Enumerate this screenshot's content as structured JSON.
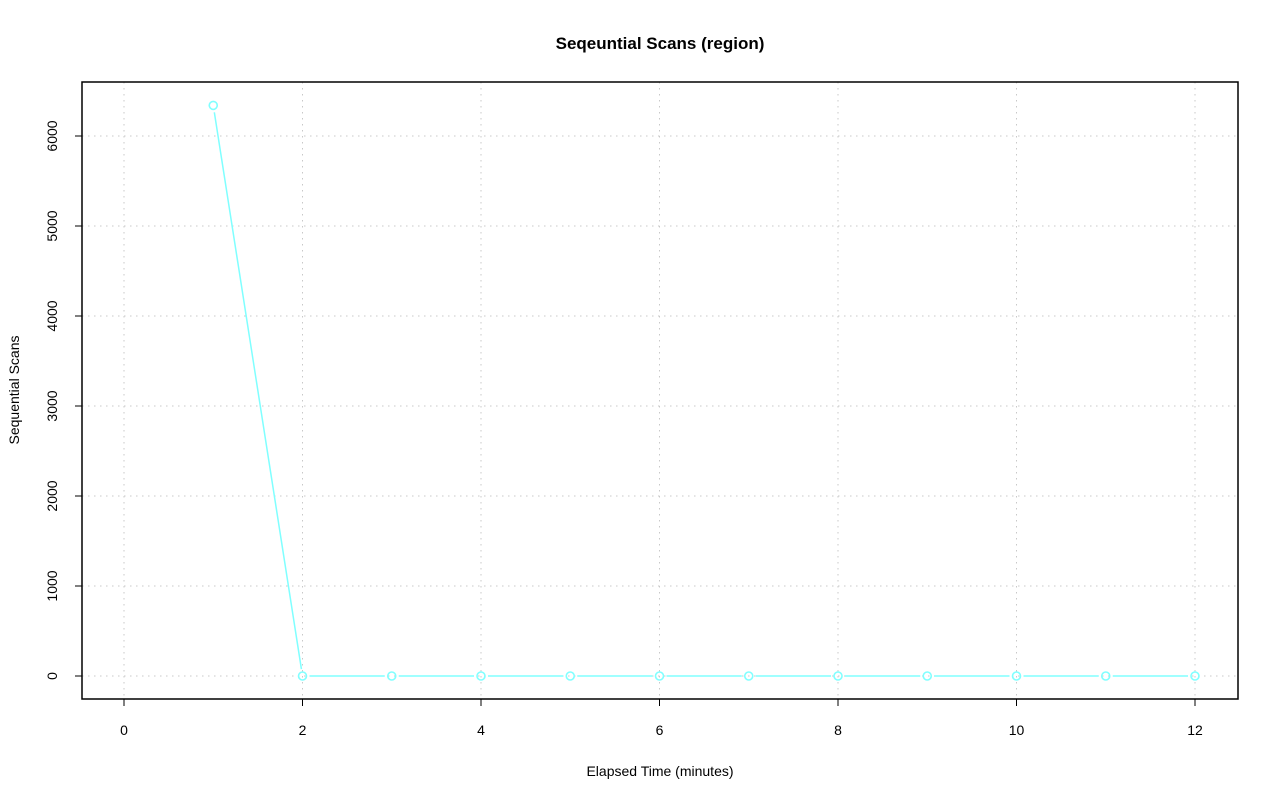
{
  "chart_data": {
    "type": "line",
    "title": "Seqeuntial Scans (region)",
    "xlabel": "Elapsed Time (minutes)",
    "ylabel": "Sequential Scans",
    "x": [
      1,
      2,
      3,
      4,
      5,
      6,
      7,
      8,
      9,
      10,
      11,
      12
    ],
    "series": [
      {
        "values": [
          6340,
          0,
          0,
          0,
          0,
          0,
          0,
          0,
          0,
          0,
          0,
          0
        ],
        "color": "#80ffff"
      }
    ],
    "xticks": [
      0,
      2,
      4,
      6,
      8,
      10,
      12
    ],
    "yticks": [
      0,
      1000,
      2000,
      3000,
      4000,
      5000,
      6000
    ],
    "xlim": [
      0,
      12
    ],
    "ylim": [
      0,
      6000
    ],
    "grid": true,
    "markers": "open-circle"
  }
}
